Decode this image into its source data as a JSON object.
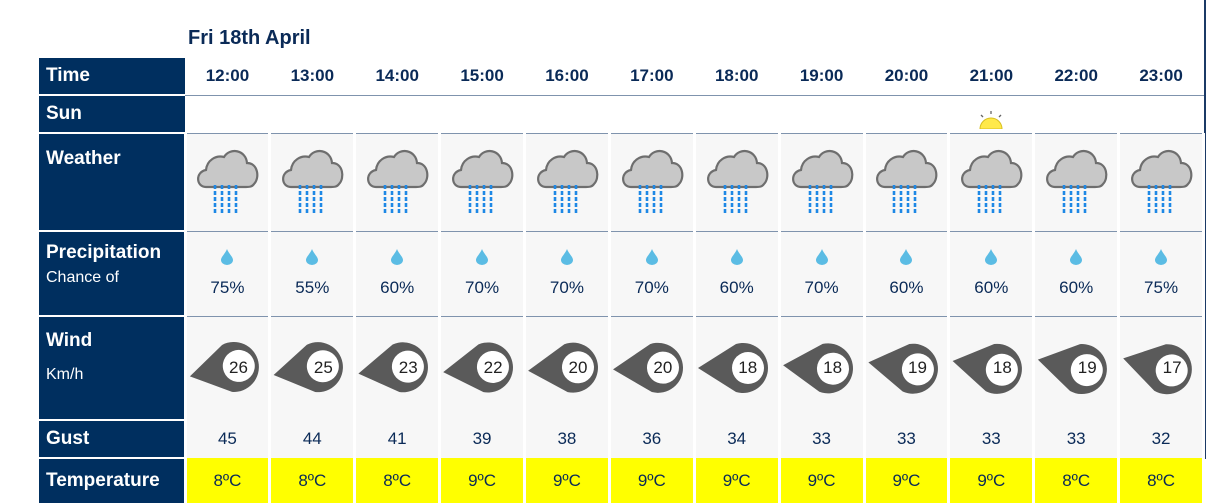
{
  "date": "Fri 18th April",
  "labels": {
    "time": "Time",
    "sun": "Sun",
    "weather": "Weather",
    "precip": "Precipitation",
    "precip_sub": "Chance of",
    "wind": "Wind",
    "wind_unit": "Km/h",
    "gust": "Gust",
    "temp": "Temperature"
  },
  "hours": [
    {
      "time": "12:00",
      "weather": "heavy-rain-icon",
      "precip": "75%",
      "wind": "26",
      "gust": "45",
      "temp": "8ºC"
    },
    {
      "time": "13:00",
      "weather": "heavy-rain-icon",
      "precip": "55%",
      "wind": "25",
      "gust": "44",
      "temp": "8ºC"
    },
    {
      "time": "14:00",
      "weather": "heavy-rain-icon",
      "precip": "60%",
      "wind": "23",
      "gust": "41",
      "temp": "8ºC"
    },
    {
      "time": "15:00",
      "weather": "heavy-rain-icon",
      "precip": "70%",
      "wind": "22",
      "gust": "39",
      "temp": "9ºC"
    },
    {
      "time": "16:00",
      "weather": "heavy-rain-icon",
      "precip": "70%",
      "wind": "20",
      "gust": "38",
      "temp": "9ºC"
    },
    {
      "time": "17:00",
      "weather": "heavy-rain-icon",
      "precip": "70%",
      "wind": "20",
      "gust": "36",
      "temp": "9ºC"
    },
    {
      "time": "18:00",
      "weather": "heavy-rain-icon",
      "precip": "60%",
      "wind": "18",
      "gust": "34",
      "temp": "9ºC"
    },
    {
      "time": "19:00",
      "weather": "heavy-rain-icon",
      "precip": "70%",
      "wind": "18",
      "gust": "33",
      "temp": "9ºC"
    },
    {
      "time": "20:00",
      "weather": "heavy-rain-icon",
      "precip": "60%",
      "wind": "19",
      "gust": "33",
      "temp": "9ºC"
    },
    {
      "time": "21:00",
      "weather": "heavy-rain-icon",
      "precip": "60%",
      "wind": "18",
      "gust": "33",
      "temp": "9ºC",
      "sunset": true
    },
    {
      "time": "22:00",
      "weather": "heavy-rain-icon",
      "precip": "60%",
      "wind": "19",
      "gust": "33",
      "temp": "8ºC"
    },
    {
      "time": "23:00",
      "weather": "heavy-rain-icon",
      "precip": "75%",
      "wind": "17",
      "gust": "32",
      "temp": "8ºC"
    }
  ],
  "colors": {
    "label_bg": "#002f5f",
    "temp_bg": "#ffff00",
    "rain": "#1e88e5",
    "drop": "#5bbce4",
    "wind_marker": "#5a5a5a",
    "sun": "#ffe94a"
  }
}
